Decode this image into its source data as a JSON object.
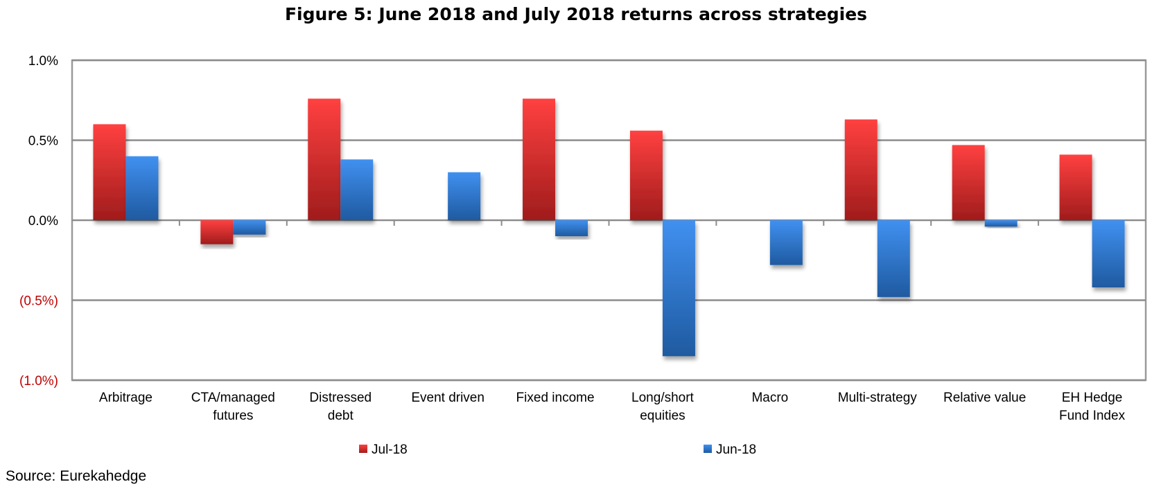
{
  "chart_data": {
    "type": "bar",
    "title": "Figure 5: June 2018 and July 2018 returns across strategies",
    "xlabel": "",
    "ylabel": "",
    "ylim": [
      -1.0,
      1.0
    ],
    "yticks": [
      1.0,
      0.5,
      0.0,
      -0.5,
      -1.0
    ],
    "ytick_labels": [
      "1.0%",
      "0.5%",
      "0.0%",
      "(0.5%)",
      "(1.0%)"
    ],
    "negative_tick_color": "#c00000",
    "grid": true,
    "legend_position": "bottom",
    "categories": [
      [
        "Arbitrage"
      ],
      [
        "CTA/managed",
        "futures"
      ],
      [
        "Distressed",
        "debt"
      ],
      [
        "Event driven"
      ],
      [
        "Fixed income"
      ],
      [
        "Long/short",
        "equities"
      ],
      [
        "Macro"
      ],
      [
        "Multi-strategy"
      ],
      [
        "Relative value"
      ],
      [
        "EH Hedge",
        "Fund Index"
      ]
    ],
    "series": [
      {
        "name": "Jul-18",
        "color": "#e03030",
        "values": [
          0.6,
          -0.15,
          0.76,
          0.0,
          0.76,
          0.56,
          0.0,
          0.63,
          0.47,
          0.41
        ]
      },
      {
        "name": "Jun-18",
        "color": "#3a7fd8",
        "values": [
          0.4,
          -0.09,
          0.38,
          0.3,
          -0.1,
          -0.85,
          -0.28,
          -0.48,
          -0.04,
          -0.42
        ]
      }
    ]
  },
  "source": "Source: Eurekahedge"
}
